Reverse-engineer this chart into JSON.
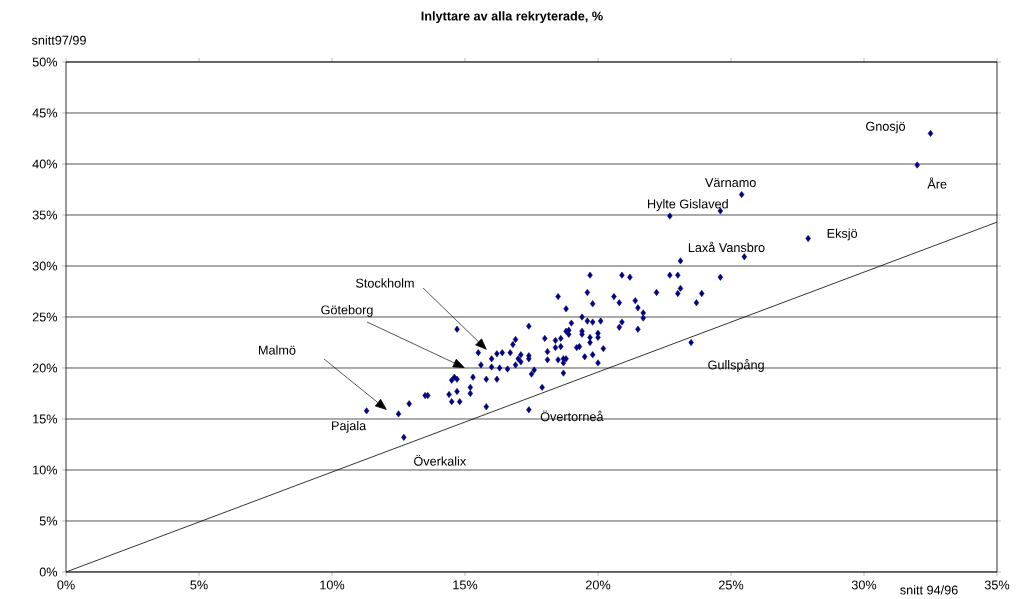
{
  "chart_data": {
    "type": "scatter",
    "title": "Inlyttare av alla rekryterade, %",
    "xlabel": "snitt 94/96",
    "ylabel": "snitt97/99",
    "xlim": [
      0,
      35
    ],
    "ylim": [
      0,
      50
    ],
    "xticks": [
      {
        "value": 0,
        "label": "0%"
      },
      {
        "value": 5,
        "label": "5%"
      },
      {
        "value": 10,
        "label": "10%"
      },
      {
        "value": 15,
        "label": "15%"
      },
      {
        "value": 20,
        "label": "20%"
      },
      {
        "value": 25,
        "label": "25%"
      },
      {
        "value": 30,
        "label": "30%"
      },
      {
        "value": 35,
        "label": "35%"
      }
    ],
    "yticks": [
      {
        "value": 0,
        "label": "0%"
      },
      {
        "value": 5,
        "label": "5%"
      },
      {
        "value": 10,
        "label": "10%"
      },
      {
        "value": 15,
        "label": "15%"
      },
      {
        "value": 20,
        "label": "20%"
      },
      {
        "value": 25,
        "label": "25%"
      },
      {
        "value": 30,
        "label": "30%"
      },
      {
        "value": 35,
        "label": "35%"
      },
      {
        "value": 40,
        "label": "40%"
      },
      {
        "value": 45,
        "label": "45%"
      },
      {
        "value": 50,
        "label": "50%"
      }
    ],
    "grid": "y",
    "series": [
      {
        "type": "scatter",
        "color": "#000080",
        "marker": "diamond",
        "x": [
          11.3,
          12.5,
          12.7,
          12.9,
          13.5,
          13.6,
          14.4,
          14.5,
          14.8,
          14.7,
          14.5,
          14.6,
          14.7,
          14.7,
          15.2,
          15.2,
          15.3,
          15.6,
          15.8,
          15.8,
          15.5,
          16.0,
          16.0,
          16.2,
          16.3,
          16.6,
          16.2,
          16.4,
          16.7,
          16.8,
          16.9,
          17.4,
          17.0,
          17.1,
          17.1,
          17.4,
          17.4,
          16.9,
          17.4,
          17.5,
          17.6,
          17.9,
          18.0,
          18.1,
          18.1,
          18.5,
          18.8,
          19.6,
          19.7,
          19.8,
          20.9,
          21.2,
          20.6,
          20.8,
          21.4,
          21.5,
          21.7,
          21.7,
          22.2,
          22.7,
          23.0,
          23.1,
          23.1,
          23.0,
          23.9,
          23.7,
          24.6,
          19.0,
          18.9,
          18.8,
          18.9,
          18.4,
          18.6,
          18.4,
          18.6,
          18.5,
          18.7,
          18.8,
          18.7,
          18.7,
          19.4,
          19.6,
          19.8,
          20.1,
          19.4,
          19.4,
          19.7,
          20.0,
          20.0,
          19.2,
          19.3,
          19.7,
          19.5,
          19.8,
          20.2,
          20.0,
          20.8,
          20.9,
          21.5,
          23.5,
          32.5,
          32.0,
          25.4,
          24.6,
          22.7,
          27.9,
          25.5
        ],
        "values": [
          15.8,
          15.5,
          13.2,
          16.5,
          17.3,
          17.3,
          17.4,
          16.7,
          16.7,
          17.7,
          18.8,
          19.1,
          18.9,
          23.8,
          18.1,
          17.5,
          19.1,
          20.3,
          18.9,
          16.2,
          21.5,
          20.9,
          20.1,
          18.9,
          20.0,
          19.9,
          21.4,
          21.5,
          21.5,
          22.3,
          22.8,
          24.1,
          20.9,
          21.3,
          20.6,
          21.2,
          20.9,
          20.3,
          15.9,
          19.4,
          19.8,
          18.1,
          22.9,
          21.6,
          20.8,
          27.0,
          25.8,
          27.4,
          29.1,
          26.3,
          29.1,
          28.9,
          27.0,
          26.4,
          26.6,
          25.9,
          25.4,
          24.9,
          27.4,
          29.1,
          29.1,
          30.5,
          27.8,
          27.3,
          27.3,
          26.4,
          28.9,
          24.4,
          23.7,
          23.6,
          23.3,
          22.7,
          22.9,
          22.0,
          22.1,
          20.8,
          20.9,
          20.9,
          20.5,
          19.5,
          25.0,
          24.6,
          24.5,
          24.6,
          23.6,
          23.3,
          23.0,
          23.4,
          23.0,
          22.0,
          22.1,
          22.5,
          21.1,
          21.3,
          21.9,
          20.5,
          24.0,
          24.5,
          23.8,
          22.5,
          43.0,
          39.9,
          37.0,
          35.4,
          34.9,
          32.7,
          30.9
        ]
      },
      {
        "type": "line",
        "color": "#000000",
        "x": [
          0,
          35
        ],
        "values": [
          0,
          34.3
        ]
      }
    ],
    "annotations": [
      {
        "text": "Gnosjö",
        "x": 32.5,
        "y": 43.0
      },
      {
        "text": "Åre",
        "x": 32.0,
        "y": 39.9
      },
      {
        "text": "Värnamo",
        "x": 25.4,
        "y": 37.0
      },
      {
        "text": "Hylte Gislaved",
        "x": 22.7,
        "y": 34.9
      },
      {
        "text": "Eksjö",
        "x": 27.9,
        "y": 32.7
      },
      {
        "text": "Laxå Vansbro",
        "x": 23.1,
        "y": 30.5
      },
      {
        "text": "Gullspång",
        "x": 23.5,
        "y": 22.5
      },
      {
        "text": "Övertorneå",
        "x": 17.4,
        "y": 15.9
      },
      {
        "text": "Pajala",
        "x": 11.3,
        "y": 15.8
      },
      {
        "text": "Överkalix",
        "x": 12.7,
        "y": 13.2
      },
      "Stockholm",
      "Göteborg",
      "Malmö"
    ]
  }
}
